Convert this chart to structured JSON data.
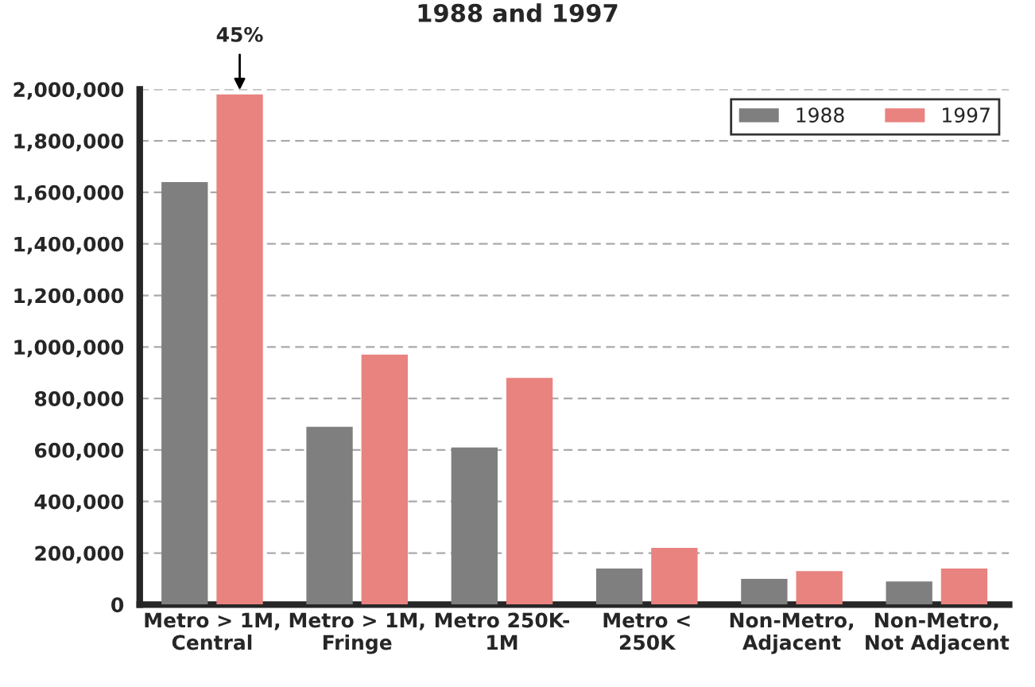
{
  "chart_data": {
    "type": "bar",
    "title": "1988 and 1997",
    "categories": [
      "Metro > 1M,\nCentral",
      "Metro > 1M,\nFringe",
      "Metro 250K-\n1M",
      "Metro <\n250K",
      "Non-Metro,\nAdjacent",
      "Non-Metro,\nNot Adjacent"
    ],
    "series": [
      {
        "name": "1988",
        "color": "#7f7f7f",
        "values": [
          1640000,
          690000,
          610000,
          140000,
          100000,
          90000
        ]
      },
      {
        "name": "1997",
        "color": "#e8837f",
        "values": [
          1980000,
          970000,
          880000,
          220000,
          130000,
          140000
        ]
      }
    ],
    "ylim": [
      0,
      2000000
    ],
    "yticks": [
      {
        "value": 0,
        "label": "0"
      },
      {
        "value": 200000,
        "label": "200,000"
      },
      {
        "value": 400000,
        "label": "400,000"
      },
      {
        "value": 600000,
        "label": "600,000"
      },
      {
        "value": 800000,
        "label": "800,000"
      },
      {
        "value": 1000000,
        "label": "1,000,000"
      },
      {
        "value": 1200000,
        "label": "1,200,000"
      },
      {
        "value": 1400000,
        "label": "1,400,000"
      },
      {
        "value": 1600000,
        "label": "1,600,000"
      },
      {
        "value": 1800000,
        "label": "1,800,000"
      },
      {
        "value": 2000000,
        "label": "2,000,000"
      }
    ],
    "grid": "y",
    "legend": "top right",
    "annotations": [
      {
        "text": "45%",
        "x": "Metro > 1M,\nCentral",
        "y": 1980000
      }
    ]
  }
}
